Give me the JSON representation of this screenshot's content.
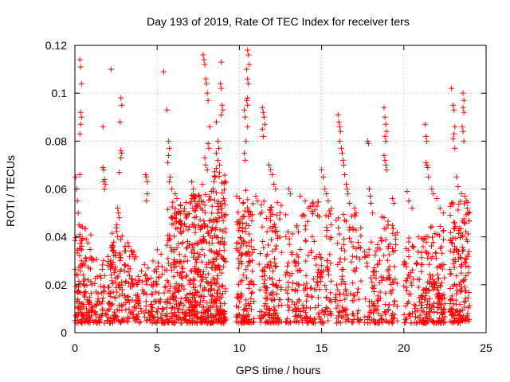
{
  "chart_data": {
    "type": "scatter",
    "title": "Day 193 of 2019, Rate Of TEC Index for receiver ters",
    "xlabel": "GPS time / hours",
    "ylabel": "ROTI / TECUs",
    "xlim": [
      0,
      25
    ],
    "ylim": [
      0,
      0.12
    ],
    "xticks": [
      0,
      5,
      10,
      15,
      20,
      25
    ],
    "xtick_labels": [
      "0",
      "5",
      "10",
      "15",
      "20",
      "25"
    ],
    "yticks": [
      0,
      0.02,
      0.04,
      0.06,
      0.08,
      0.1,
      0.12
    ],
    "ytick_labels": [
      "0",
      "0.02",
      "0.04",
      "0.06",
      "0.08",
      "0.1",
      "0.12"
    ],
    "grid": true,
    "marker": "plus",
    "marker_color": "#ff0000",
    "series": [
      {
        "name": "ROTI",
        "points": [
          [
            0.05,
            0.065
          ],
          [
            0.1,
            0.06
          ],
          [
            0.15,
            0.055
          ],
          [
            0.2,
            0.05
          ],
          [
            0.25,
            0.045
          ],
          [
            0.3,
            0.04
          ],
          [
            0.35,
            0.035
          ],
          [
            0.4,
            0.03
          ],
          [
            0.3,
            0.114
          ],
          [
            0.35,
            0.111
          ],
          [
            0.4,
            0.104
          ],
          [
            0.35,
            0.092
          ],
          [
            0.4,
            0.09
          ],
          [
            0.35,
            0.087
          ],
          [
            0.3,
            0.083
          ],
          [
            0.3,
            0.066
          ],
          [
            0.45,
            0.028
          ],
          [
            0.5,
            0.024
          ],
          [
            0.55,
            0.02
          ],
          [
            0.6,
            0.015
          ],
          [
            0.7,
            0.01
          ],
          [
            0.8,
            0.006
          ],
          [
            2.2,
            0.11
          ],
          [
            2.8,
            0.098
          ],
          [
            2.85,
            0.095
          ],
          [
            2.75,
            0.088
          ],
          [
            2.8,
            0.076
          ],
          [
            2.85,
            0.075
          ],
          [
            2.8,
            0.073
          ],
          [
            2.7,
            0.067
          ],
          [
            1.7,
            0.086
          ],
          [
            1.7,
            0.069
          ],
          [
            1.75,
            0.068
          ],
          [
            1.8,
            0.064
          ],
          [
            1.75,
            0.063
          ],
          [
            1.85,
            0.062
          ],
          [
            1.8,
            0.06
          ],
          [
            2.6,
            0.052
          ],
          [
            2.65,
            0.05
          ],
          [
            2.7,
            0.048
          ],
          [
            2.55,
            0.045
          ],
          [
            2.6,
            0.04
          ],
          [
            4.3,
            0.066
          ],
          [
            4.35,
            0.065
          ],
          [
            4.4,
            0.063
          ],
          [
            4.4,
            0.058
          ],
          [
            4.35,
            0.055
          ],
          [
            5.4,
            0.109
          ],
          [
            5.6,
            0.093
          ],
          [
            5.7,
            0.08
          ],
          [
            5.75,
            0.077
          ],
          [
            5.7,
            0.074
          ],
          [
            5.65,
            0.071
          ],
          [
            5.8,
            0.065
          ],
          [
            5.75,
            0.063
          ],
          [
            5.9,
            0.06
          ],
          [
            6.1,
            0.058
          ],
          [
            6.2,
            0.056
          ],
          [
            6.3,
            0.05
          ],
          [
            6.5,
            0.045
          ],
          [
            6.4,
            0.042
          ],
          [
            7.1,
            0.063
          ],
          [
            7.2,
            0.06
          ],
          [
            7.3,
            0.057
          ],
          [
            7.8,
            0.116
          ],
          [
            7.85,
            0.114
          ],
          [
            7.9,
            0.112
          ],
          [
            7.95,
            0.106
          ],
          [
            8.0,
            0.104
          ],
          [
            8.1,
            0.097
          ],
          [
            8.05,
            0.1
          ],
          [
            8.2,
            0.086
          ],
          [
            8.1,
            0.079
          ],
          [
            8.15,
            0.077
          ],
          [
            7.9,
            0.073
          ],
          [
            7.95,
            0.07
          ],
          [
            8.05,
            0.068
          ],
          [
            7.75,
            0.062
          ],
          [
            8.9,
            0.113
          ],
          [
            8.85,
            0.104
          ],
          [
            8.9,
            0.102
          ],
          [
            8.95,
            0.095
          ],
          [
            9.0,
            0.093
          ],
          [
            8.9,
            0.091
          ],
          [
            8.6,
            0.088
          ],
          [
            8.7,
            0.08
          ],
          [
            8.75,
            0.077
          ],
          [
            8.6,
            0.075
          ],
          [
            8.7,
            0.072
          ],
          [
            8.8,
            0.07
          ],
          [
            8.5,
            0.065
          ],
          [
            10.5,
            0.118
          ],
          [
            10.55,
            0.116
          ],
          [
            10.6,
            0.112
          ],
          [
            10.45,
            0.11
          ],
          [
            10.5,
            0.106
          ],
          [
            10.55,
            0.104
          ],
          [
            10.5,
            0.098
          ],
          [
            10.45,
            0.097
          ],
          [
            10.5,
            0.095
          ],
          [
            10.3,
            0.093
          ],
          [
            10.35,
            0.09
          ],
          [
            10.5,
            0.086
          ],
          [
            10.4,
            0.08
          ],
          [
            10.3,
            0.075
          ],
          [
            10.35,
            0.072
          ],
          [
            11.4,
            0.094
          ],
          [
            11.45,
            0.092
          ],
          [
            11.5,
            0.09
          ],
          [
            11.55,
            0.087
          ],
          [
            11.4,
            0.085
          ],
          [
            11.45,
            0.082
          ],
          [
            11.0,
            0.057
          ],
          [
            11.1,
            0.055
          ],
          [
            11.8,
            0.07
          ],
          [
            11.9,
            0.068
          ],
          [
            12.0,
            0.066
          ],
          [
            12.1,
            0.062
          ],
          [
            12.2,
            0.06
          ],
          [
            13.0,
            0.06
          ],
          [
            13.1,
            0.058
          ],
          [
            13.7,
            0.057
          ],
          [
            14.0,
            0.055
          ],
          [
            14.2,
            0.052
          ],
          [
            15.0,
            0.068
          ],
          [
            15.1,
            0.065
          ],
          [
            15.2,
            0.06
          ],
          [
            15.3,
            0.058
          ],
          [
            15.4,
            0.055
          ],
          [
            16.0,
            0.091
          ],
          [
            16.05,
            0.088
          ],
          [
            16.1,
            0.086
          ],
          [
            16.15,
            0.084
          ],
          [
            16.1,
            0.08
          ],
          [
            16.2,
            0.077
          ],
          [
            16.25,
            0.075
          ],
          [
            16.3,
            0.072
          ],
          [
            16.35,
            0.07
          ],
          [
            16.4,
            0.066
          ],
          [
            16.5,
            0.062
          ],
          [
            16.55,
            0.06
          ],
          [
            16.6,
            0.058
          ],
          [
            16.7,
            0.054
          ],
          [
            17.0,
            0.052
          ],
          [
            17.1,
            0.05
          ],
          [
            17.8,
            0.08
          ],
          [
            17.85,
            0.079
          ],
          [
            17.9,
            0.06
          ],
          [
            17.95,
            0.057
          ],
          [
            18.0,
            0.054
          ],
          [
            18.1,
            0.05
          ],
          [
            18.8,
            0.094
          ],
          [
            18.85,
            0.09
          ],
          [
            18.9,
            0.087
          ],
          [
            18.95,
            0.084
          ],
          [
            18.85,
            0.082
          ],
          [
            18.9,
            0.08
          ],
          [
            18.8,
            0.074
          ],
          [
            18.85,
            0.072
          ],
          [
            18.9,
            0.07
          ],
          [
            18.95,
            0.068
          ],
          [
            19.3,
            0.056
          ],
          [
            19.4,
            0.054
          ],
          [
            20.2,
            0.059
          ],
          [
            20.3,
            0.055
          ],
          [
            20.5,
            0.052
          ],
          [
            21.3,
            0.087
          ],
          [
            21.35,
            0.082
          ],
          [
            21.4,
            0.08
          ],
          [
            21.35,
            0.071
          ],
          [
            21.4,
            0.07
          ],
          [
            21.45,
            0.069
          ],
          [
            21.5,
            0.065
          ],
          [
            21.7,
            0.06
          ],
          [
            21.8,
            0.058
          ],
          [
            22.0,
            0.056
          ],
          [
            22.2,
            0.052
          ],
          [
            22.4,
            0.05
          ],
          [
            22.9,
            0.102
          ],
          [
            23.0,
            0.095
          ],
          [
            23.05,
            0.093
          ],
          [
            23.1,
            0.086
          ],
          [
            23.05,
            0.083
          ],
          [
            23.0,
            0.081
          ],
          [
            23.1,
            0.077
          ],
          [
            23.6,
            0.1
          ],
          [
            23.65,
            0.097
          ],
          [
            23.6,
            0.094
          ],
          [
            23.65,
            0.092
          ],
          [
            23.55,
            0.086
          ],
          [
            23.6,
            0.084
          ],
          [
            23.65,
            0.08
          ],
          [
            23.2,
            0.065
          ],
          [
            23.3,
            0.061
          ],
          [
            23.5,
            0.058
          ],
          [
            23.7,
            0.057
          ],
          [
            23.8,
            0.055
          ],
          [
            23.85,
            0.052
          ],
          [
            23.9,
            0.05
          ]
        ],
        "clusters": [
          {
            "x_range": [
              0.0,
              1.0
            ],
            "y_base": 0.004,
            "y_top": 0.045,
            "n": 120
          },
          {
            "x_range": [
              1.0,
              2.2
            ],
            "y_base": 0.004,
            "y_top": 0.035,
            "n": 90
          },
          {
            "x_range": [
              2.2,
              3.3
            ],
            "y_base": 0.004,
            "y_top": 0.045,
            "n": 110
          },
          {
            "x_range": [
              3.3,
              4.5
            ],
            "y_base": 0.004,
            "y_top": 0.035,
            "n": 80
          },
          {
            "x_range": [
              4.5,
              5.6
            ],
            "y_base": 0.004,
            "y_top": 0.035,
            "n": 80
          },
          {
            "x_range": [
              5.6,
              7.0
            ],
            "y_base": 0.004,
            "y_top": 0.055,
            "n": 200
          },
          {
            "x_range": [
              7.0,
              8.3
            ],
            "y_base": 0.004,
            "y_top": 0.06,
            "n": 230
          },
          {
            "x_range": [
              8.3,
              9.2
            ],
            "y_base": 0.004,
            "y_top": 0.07,
            "n": 190
          },
          {
            "x_range": [
              9.8,
              10.9
            ],
            "y_base": 0.004,
            "y_top": 0.06,
            "n": 150
          },
          {
            "x_range": [
              11.2,
              12.6
            ],
            "y_base": 0.004,
            "y_top": 0.055,
            "n": 150
          },
          {
            "x_range": [
              12.8,
              14.2
            ],
            "y_base": 0.004,
            "y_top": 0.05,
            "n": 110
          },
          {
            "x_range": [
              14.3,
              15.6
            ],
            "y_base": 0.004,
            "y_top": 0.055,
            "n": 110
          },
          {
            "x_range": [
              15.8,
              17.4
            ],
            "y_base": 0.004,
            "y_top": 0.05,
            "n": 110
          },
          {
            "x_range": [
              17.6,
              18.6
            ],
            "y_base": 0.004,
            "y_top": 0.04,
            "n": 70
          },
          {
            "x_range": [
              18.6,
              19.6
            ],
            "y_base": 0.004,
            "y_top": 0.05,
            "n": 80
          },
          {
            "x_range": [
              20.0,
              21.3
            ],
            "y_base": 0.004,
            "y_top": 0.04,
            "n": 100
          },
          {
            "x_range": [
              21.3,
              22.5
            ],
            "y_base": 0.004,
            "y_top": 0.045,
            "n": 150
          },
          {
            "x_range": [
              22.8,
              24.0
            ],
            "y_base": 0.004,
            "y_top": 0.055,
            "n": 170
          }
        ]
      }
    ]
  }
}
